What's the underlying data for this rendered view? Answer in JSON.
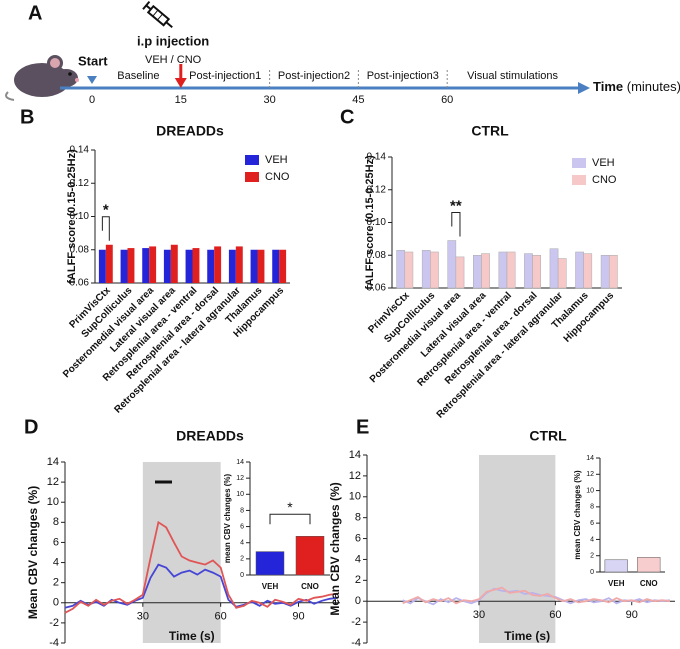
{
  "timeline": {
    "panel": "A",
    "start": "Start",
    "injection": "i.p injection",
    "injection_groups": "VEH /  CNO",
    "ticks": [
      0,
      15,
      30,
      45,
      60
    ],
    "phases": [
      "Baseline",
      "Post-injection1",
      "Post-injection2",
      "Post-injection3",
      "Visual stimulations"
    ],
    "axis_label": "Time",
    "axis_unit": "(minutes)"
  },
  "chart_data": [
    {
      "panel": "B",
      "type": "bar",
      "title": "DREADDs",
      "y_label": "fALFF score (0.15-0.25Hz)",
      "categories": [
        "PrimVisCtx",
        "SupColliculus",
        "Posteromedial visual area",
        "Lateral visual area",
        "Retrosplenial area - ventral",
        "Retrosplenial area - dorsal",
        "Retrosplenial area - lateral agranular",
        "Thalamus",
        "Hippocampus"
      ],
      "series": [
        {
          "name": "VEH",
          "color": "#2424d8",
          "values": [
            0.08,
            0.08,
            0.081,
            0.08,
            0.08,
            0.08,
            0.08,
            0.08,
            0.08
          ]
        },
        {
          "name": "CNO",
          "color": "#e01f1f",
          "values": [
            0.083,
            0.081,
            0.082,
            0.083,
            0.081,
            0.082,
            0.082,
            0.08,
            0.08
          ]
        }
      ],
      "ylim": [
        0.06,
        0.14
      ],
      "yticks": [
        0.06,
        0.08,
        {
          "value": 0.1,
          "label": "0.10"
        },
        0.12,
        0.14
      ],
      "annotation": "*"
    },
    {
      "panel": "C",
      "type": "bar",
      "title": "CTRL",
      "y_label": "fALFF score (0.15-0.25Hz)",
      "categories": [
        "PrimVisCtx",
        "SupColliculus",
        "Posteromedial visual area",
        "Lateral visual area",
        "Retrosplenial area - ventral",
        "Retrosplenial area - dorsal",
        "Retrosplenial area - lateral agranular",
        "Thalamus",
        "Hippocampus"
      ],
      "series": [
        {
          "name": "VEH",
          "color": "#cbc6ef",
          "values": [
            0.083,
            0.083,
            0.089,
            0.08,
            0.082,
            0.081,
            0.084,
            0.082,
            0.08
          ]
        },
        {
          "name": "CNO",
          "color": "#f6c8c8",
          "values": [
            0.082,
            0.082,
            0.079,
            0.081,
            0.082,
            0.08,
            0.078,
            0.081,
            0.08
          ]
        }
      ],
      "ylim": [
        0.06,
        0.14
      ],
      "yticks": [
        0.06,
        0.08,
        {
          "value": 0.1,
          "label": "0.10"
        },
        0.12,
        0.14
      ],
      "annotation": "**"
    },
    {
      "panel": "D",
      "type": "line",
      "title": "DREADDs",
      "y_label": "Mean CBV changes (%)",
      "x_label": "Time (s)",
      "x": [
        0,
        3,
        6,
        9,
        12,
        15,
        18,
        21,
        24,
        27,
        30,
        33,
        36,
        39,
        42,
        45,
        48,
        51,
        54,
        57,
        60,
        63,
        66,
        69,
        72,
        75,
        78,
        81,
        84,
        87,
        90,
        93,
        96,
        99,
        102,
        105
      ],
      "series": [
        {
          "name": "VEH",
          "color": "#4646d6",
          "values": [
            -0.5,
            -0.3,
            0.2,
            -0.2,
            0.1,
            -0.3,
            0.3,
            0.0,
            -0.2,
            0.2,
            0.5,
            2.5,
            3.8,
            3.5,
            2.6,
            3.0,
            3.2,
            2.8,
            3.3,
            3.0,
            2.6,
            0.3,
            -0.4,
            -0.2,
            0.1,
            -0.3,
            0.2,
            -0.1,
            0.0,
            -0.3,
            0.1,
            0.3,
            -0.1,
            0.2,
            0.4,
            0.5
          ]
        },
        {
          "name": "CNO",
          "color": "#e05555",
          "values": [
            -1.0,
            -0.6,
            0.1,
            -0.3,
            0.3,
            -0.2,
            0.2,
            0.4,
            -0.1,
            0.3,
            0.8,
            4.5,
            8.0,
            7.5,
            6.0,
            4.6,
            4.2,
            4.0,
            3.8,
            4.2,
            3.5,
            0.8,
            -0.5,
            -0.3,
            0.2,
            0.0,
            -0.4,
            0.3,
            0.1,
            -0.2,
            0.4,
            0.2,
            0.5,
            0.6,
            0.8,
            0.9
          ]
        }
      ],
      "stimulus_window": [
        30,
        60
      ],
      "xlim": [
        0,
        106
      ],
      "xticks": [
        30,
        60,
        90
      ],
      "ylim": [
        -4,
        14
      ],
      "yticks": [
        -4,
        -2,
        0,
        2,
        4,
        6,
        8,
        10,
        12,
        14
      ],
      "inset": {
        "type": "bar",
        "y_label": "mean CBV changes (%)",
        "categories": [
          "VEH",
          "CNO"
        ],
        "values": [
          2.9,
          4.8
        ],
        "colors": [
          "#2424d8",
          "#e01f1f"
        ],
        "ylim": [
          0,
          14
        ],
        "yticks": [
          0,
          2,
          4,
          6,
          8,
          10,
          12,
          14
        ],
        "annotation": "*"
      }
    },
    {
      "panel": "E",
      "type": "line",
      "title": "CTRL",
      "y_label": "Mean CBV changes (%)",
      "x_label": "Time (s)",
      "x": [
        0,
        3,
        6,
        9,
        12,
        15,
        18,
        21,
        24,
        27,
        30,
        33,
        36,
        39,
        42,
        45,
        48,
        51,
        54,
        57,
        60,
        63,
        66,
        69,
        72,
        75,
        78,
        81,
        84,
        87,
        90,
        93,
        96,
        99,
        102,
        105
      ],
      "series": [
        {
          "name": "VEH",
          "color": "#b9b3ec",
          "values": [
            0.1,
            -0.2,
            0.3,
            0.0,
            -0.3,
            0.2,
            -0.1,
            0.3,
            0.0,
            -0.2,
            0.1,
            0.8,
            1.2,
            1.0,
            0.9,
            1.0,
            0.7,
            0.8,
            0.6,
            0.5,
            0.4,
            0.1,
            -0.2,
            0.1,
            0.2,
            -0.1,
            0.0,
            0.3,
            -0.2,
            0.1,
            0.0,
            0.2,
            -0.1,
            0.1,
            0.0,
            0.1
          ]
        },
        {
          "name": "CNO",
          "color": "#f0a9a9",
          "values": [
            -0.2,
            0.1,
            0.4,
            -0.1,
            0.2,
            0.0,
            0.3,
            -0.2,
            0.1,
            0.0,
            0.2,
            0.9,
            1.1,
            1.3,
            0.8,
            0.9,
            1.0,
            0.6,
            0.5,
            0.7,
            0.3,
            0.0,
            0.2,
            -0.1,
            0.0,
            0.2,
            0.1,
            -0.1,
            0.3,
            0.0,
            0.1,
            -0.1,
            0.2,
            0.0,
            0.1,
            0.0
          ]
        }
      ],
      "stimulus_window": [
        30,
        60
      ],
      "xlim": [
        -14,
        107
      ],
      "xticks": [
        30,
        60,
        90
      ],
      "ylim": [
        -4,
        14
      ],
      "yticks": [
        -4,
        -2,
        0,
        2,
        4,
        6,
        8,
        10,
        12,
        14
      ],
      "inset": {
        "type": "bar",
        "y_label": "mean CBV changes (%)",
        "categories": [
          "VEH",
          "CNO"
        ],
        "values": [
          1.5,
          1.8
        ],
        "colors": [
          "#d8d4f4",
          "#f7cdcd"
        ],
        "ylim": [
          0,
          14
        ],
        "yticks": [
          0,
          2,
          4,
          6,
          8,
          10,
          12,
          14
        ]
      }
    }
  ]
}
